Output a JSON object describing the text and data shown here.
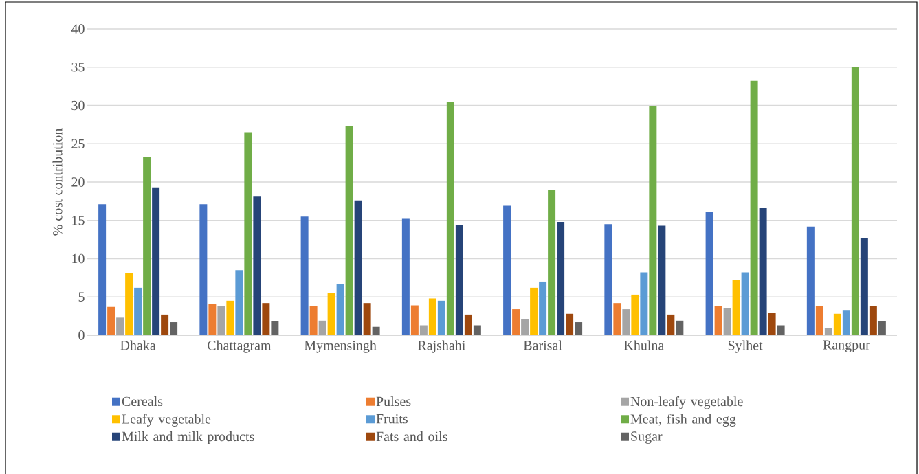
{
  "chart_data": {
    "type": "bar",
    "ylabel": "% cost contribution",
    "categories": [
      "Dhaka",
      "Chattagram",
      "Mymensingh",
      "Rajshahi",
      "Barisal",
      "Khulna",
      "Sylhet",
      "Rangpur"
    ],
    "series": [
      {
        "name": "Cereals",
        "color": "#4472c4",
        "values": [
          17.1,
          17.1,
          15.5,
          15.2,
          16.9,
          14.5,
          16.1,
          14.2
        ]
      },
      {
        "name": "Pulses",
        "color": "#ed7d31",
        "values": [
          3.7,
          4.1,
          3.8,
          3.9,
          3.4,
          4.2,
          3.8,
          3.8
        ]
      },
      {
        "name": "Non-leafy vegetable",
        "color": "#a5a5a5",
        "values": [
          2.3,
          3.8,
          1.9,
          1.3,
          2.1,
          3.4,
          3.5,
          0.9
        ]
      },
      {
        "name": "Leafy vegetable",
        "color": "#ffc000",
        "values": [
          8.1,
          4.5,
          5.5,
          4.8,
          6.2,
          5.3,
          7.2,
          2.8
        ]
      },
      {
        "name": "Fruits",
        "color": "#5b9bd5",
        "values": [
          6.2,
          8.5,
          6.7,
          4.5,
          7.0,
          8.2,
          8.2,
          3.3
        ]
      },
      {
        "name": "Meat, fish and egg",
        "color": "#70ad47",
        "values": [
          23.3,
          26.5,
          27.3,
          30.5,
          19.0,
          29.9,
          33.2,
          35.0
        ]
      },
      {
        "name": "Milk and milk products",
        "color": "#264478",
        "values": [
          19.3,
          18.1,
          17.6,
          14.4,
          14.8,
          14.3,
          16.6,
          12.7
        ]
      },
      {
        "name": "Fats and oils",
        "color": "#9e480e",
        "values": [
          2.7,
          4.2,
          4.2,
          2.7,
          2.8,
          2.7,
          2.9,
          3.8
        ]
      },
      {
        "name": "Sugar",
        "color": "#636363",
        "values": [
          1.7,
          1.8,
          1.1,
          1.3,
          1.7,
          1.9,
          1.3,
          1.8
        ]
      }
    ],
    "ylim": [
      0,
      40
    ],
    "yticks": [
      0,
      5,
      10,
      15,
      20,
      25,
      30,
      35,
      40
    ],
    "grid": "y",
    "legend": "bottom"
  }
}
